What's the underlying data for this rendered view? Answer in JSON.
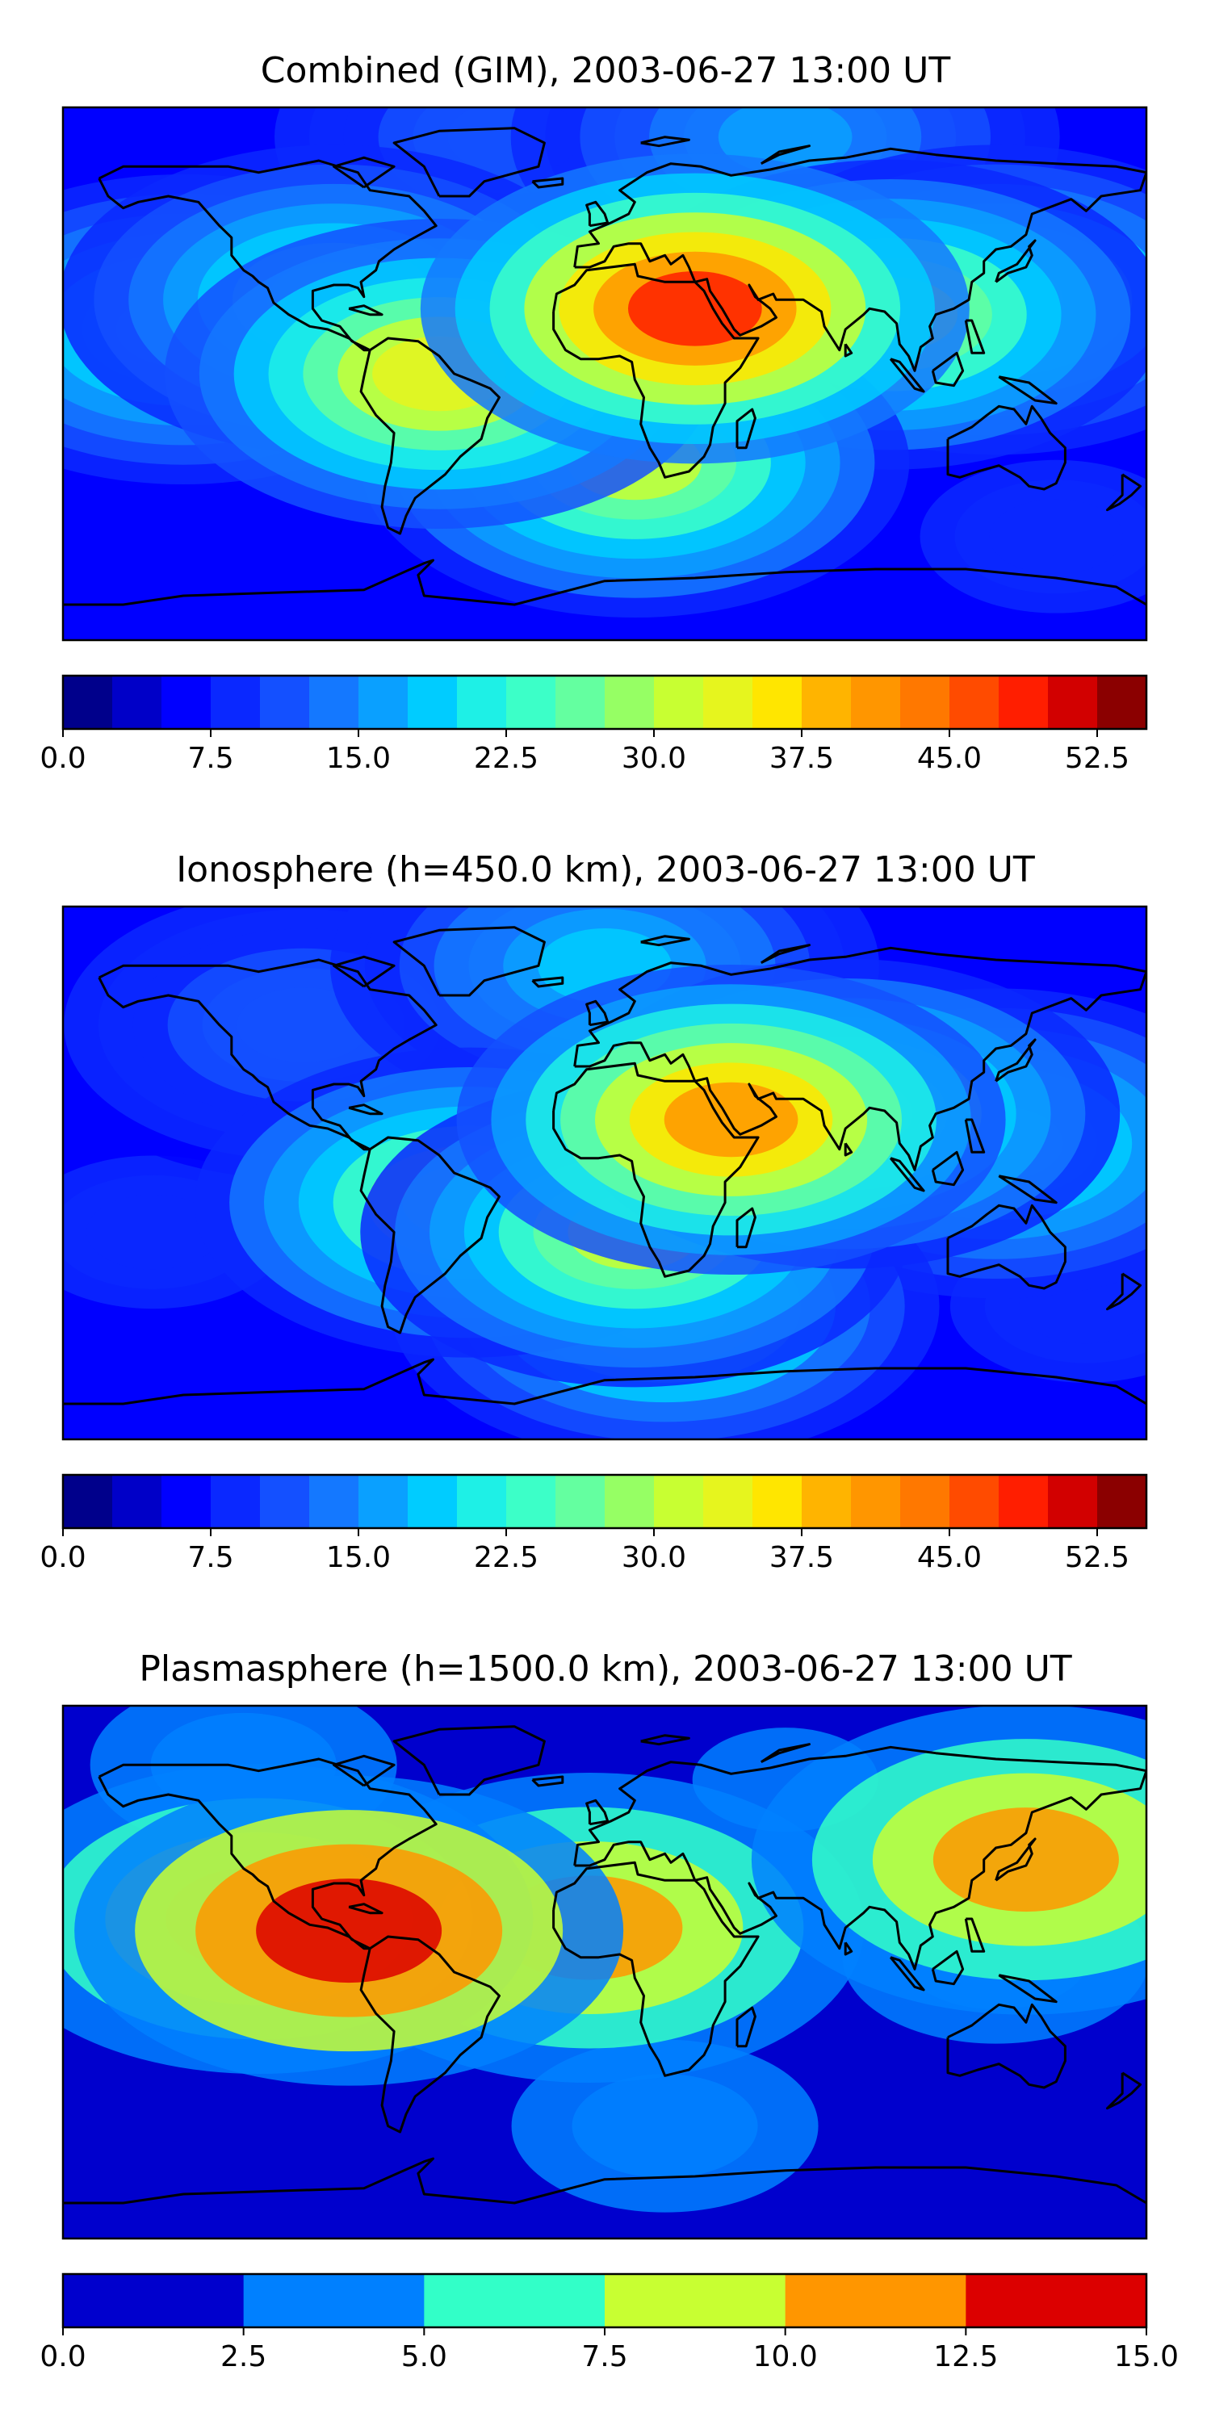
{
  "chart_data": [
    {
      "type": "heatmap",
      "title": "Combined (GIM), 2003-06-27 13:00 UT",
      "colorbar": {
        "ticks": [
          "0.0",
          "7.5",
          "15.0",
          "22.5",
          "30.0",
          "37.5",
          "45.0",
          "52.5"
        ],
        "range": [
          0,
          55
        ],
        "colors": [
          "#00008b",
          "#0000c8",
          "#0000ff",
          "#0a28ff",
          "#1450ff",
          "#1478ff",
          "#0aa0ff",
          "#00ccff",
          "#1ef0e6",
          "#3cffc8",
          "#64ffa0",
          "#96ff64",
          "#c8ff32",
          "#e6f51e",
          "#ffe600",
          "#ffb400",
          "#ff9600",
          "#ff7800",
          "#ff4b00",
          "#ff1e00",
          "#d20000",
          "#8b0000"
        ]
      },
      "fields": [
        {
          "lon": 30,
          "lat": 22,
          "value": 48
        },
        {
          "lon": -55,
          "lat": 0,
          "value": 34
        },
        {
          "lon": 95,
          "lat": 20,
          "value": 30
        },
        {
          "lon": 10,
          "lat": -30,
          "value": 30
        },
        {
          "lon": 130,
          "lat": 25,
          "value": 26
        },
        {
          "lon": -90,
          "lat": 25,
          "value": 24
        },
        {
          "lon": -140,
          "lat": 15,
          "value": 22
        },
        {
          "lon": -140,
          "lat": -55,
          "value": 6
        },
        {
          "lon": 150,
          "lat": -55,
          "value": 8
        },
        {
          "lon": -30,
          "lat": 80,
          "value": 12
        },
        {
          "lon": 60,
          "lat": 80,
          "value": 16
        }
      ]
    },
    {
      "type": "heatmap",
      "title": "Ionosphere  (h=450.0 km), 2003-06-27 13:00 UT",
      "colorbar": {
        "ticks": [
          "0.0",
          "7.5",
          "15.0",
          "22.5",
          "30.0",
          "37.5",
          "45.0",
          "52.5"
        ],
        "range": [
          0,
          55
        ],
        "colors": [
          "#00008b",
          "#0000c8",
          "#0000ff",
          "#0a28ff",
          "#1450ff",
          "#1478ff",
          "#0aa0ff",
          "#00ccff",
          "#1ef0e6",
          "#3cffc8",
          "#64ffa0",
          "#96ff64",
          "#c8ff32",
          "#e6f51e",
          "#ffe600",
          "#ffb400",
          "#ff9600",
          "#ff7800",
          "#ff4b00",
          "#ff1e00",
          "#d20000",
          "#8b0000"
        ]
      },
      "fields": [
        {
          "lon": 42,
          "lat": 18,
          "value": 42
        },
        {
          "lon": -45,
          "lat": -10,
          "value": 30
        },
        {
          "lon": 10,
          "lat": -20,
          "value": 30
        },
        {
          "lon": 20,
          "lat": -45,
          "value": 26
        },
        {
          "lon": 130,
          "lat": 10,
          "value": 22
        },
        {
          "lon": 80,
          "lat": 20,
          "value": 30
        },
        {
          "lon": -150,
          "lat": -20,
          "value": 8
        },
        {
          "lon": 160,
          "lat": -45,
          "value": 8
        },
        {
          "lon": -100,
          "lat": 50,
          "value": 12
        },
        {
          "lon": 0,
          "lat": 70,
          "value": 18
        }
      ]
    },
    {
      "type": "heatmap",
      "title": "Plasmasphere (h=1500.0 km), 2003-06-27 13:00 UT",
      "colorbar": {
        "ticks": [
          "0.0",
          "2.5",
          "5.0",
          "7.5",
          "10.0",
          "12.5",
          "15.0"
        ],
        "range": [
          0,
          15
        ],
        "colors": [
          "#0000cd",
          "#0080ff",
          "#32ffc8",
          "#c8ff32",
          "#ff9600",
          "#dc0000"
        ]
      },
      "fields": [
        {
          "lon": -115,
          "lat": 18,
          "value": 12
        },
        {
          "lon": -85,
          "lat": 14,
          "value": 15
        },
        {
          "lon": -5,
          "lat": 15,
          "value": 11
        },
        {
          "lon": 140,
          "lat": 38,
          "value": 11
        },
        {
          "lon": 40,
          "lat": 10,
          "value": 1
        },
        {
          "lon": 130,
          "lat": 5,
          "value": 4
        },
        {
          "lon": 20,
          "lat": -52,
          "value": 4
        },
        {
          "lon": 0,
          "lat": -70,
          "value": 1
        },
        {
          "lon": -150,
          "lat": -40,
          "value": 1
        },
        {
          "lon": -120,
          "lat": 70,
          "value": 4
        },
        {
          "lon": 60,
          "lat": 65,
          "value": 3
        }
      ]
    }
  ]
}
